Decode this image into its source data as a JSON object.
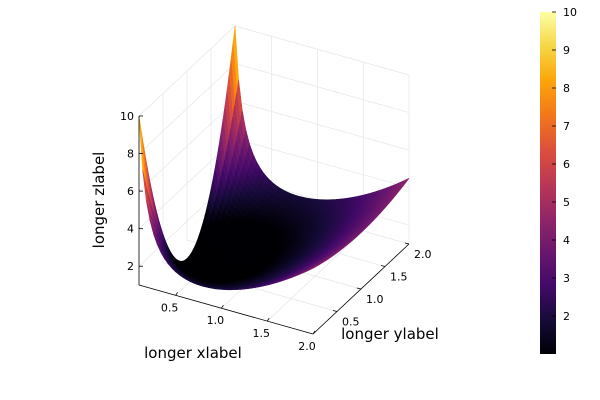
{
  "chart_data": {
    "type": "surface",
    "function": "z = x^2 + (y-1)^2 / x",
    "x_range": [
      0.1,
      2.0
    ],
    "y_range": [
      0.0,
      2.0
    ],
    "z_range": [
      1,
      10
    ],
    "xlabel": "longer xlabel",
    "ylabel": "longer ylabel",
    "zlabel": "longer zlabel",
    "x_ticks": [
      "0.5",
      "1.0",
      "1.5",
      "2.0"
    ],
    "y_ticks": [
      "0.5",
      "1.0",
      "1.5",
      "2.0"
    ],
    "z_ticks": [
      "2",
      "4",
      "6",
      "8",
      "10"
    ],
    "colorbar": {
      "colormap": "inferno",
      "range": [
        1,
        10
      ],
      "ticks": [
        "2",
        "3",
        "4",
        "5",
        "6",
        "7",
        "8",
        "9",
        "10"
      ]
    },
    "grid": true,
    "legend": "none"
  }
}
